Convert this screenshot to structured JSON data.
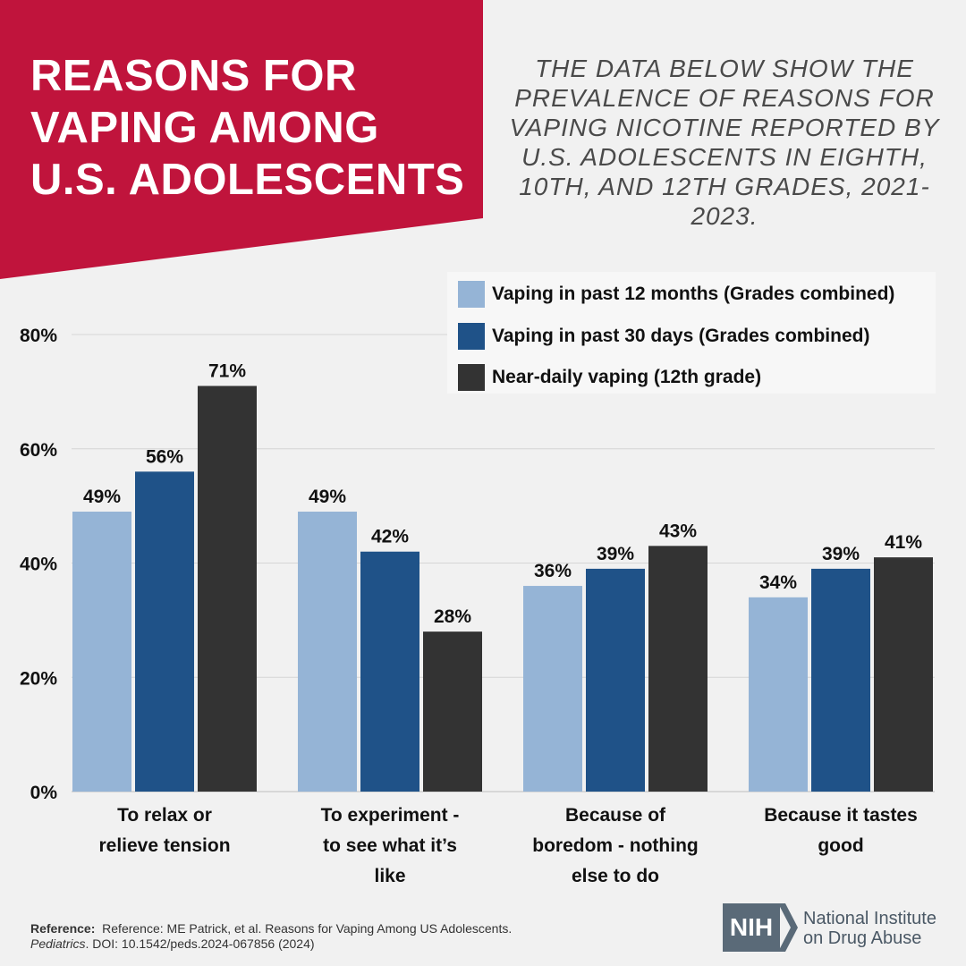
{
  "header": {
    "title": "REASONS FOR VAPING AMONG U.S. ADOLESCENTS",
    "subtitle": "THE DATA BELOW SHOW THE PREVALENCE OF REASONS FOR VAPING NICOTINE REPORTED BY U.S. ADOLESCENTS IN EIGHTH, 10TH, AND 12TH GRADES, 2021-2023.",
    "banner_color": "#c0143c"
  },
  "chart_data": {
    "type": "bar",
    "categories": [
      [
        "To relax or",
        "relieve tension"
      ],
      [
        "To experiment -",
        "to see what it’s",
        "like"
      ],
      [
        "Because of",
        "boredom - nothing",
        "else to do"
      ],
      [
        "Because it tastes",
        "good"
      ]
    ],
    "series": [
      {
        "name": "Vaping in past 12 months (Grades combined)",
        "color": "#95b4d6",
        "values": [
          49,
          49,
          36,
          34
        ],
        "labels": [
          "49%",
          "49%",
          "36%",
          "34%"
        ]
      },
      {
        "name": "Vaping in past 30 days (Grades combined)",
        "color": "#1f5288",
        "values": [
          56,
          42,
          39,
          39
        ],
        "labels": [
          "56%",
          "42%",
          "39%",
          "39%"
        ]
      },
      {
        "name": "Near-daily vaping (12th grade)",
        "color": "#333333",
        "values": [
          71,
          28,
          43,
          41
        ],
        "labels": [
          "71%",
          "28%",
          "43%",
          "41%"
        ]
      }
    ],
    "yticks": [
      "0%",
      "20%",
      "40%",
      "60%",
      "80%"
    ],
    "ytick_values": [
      0,
      20,
      40,
      60,
      80
    ],
    "ylim": [
      0,
      80
    ],
    "grid": true,
    "legend_position": "top-right"
  },
  "legend": {
    "items": [
      {
        "label": "Vaping in past 12 months (Grades combined)",
        "color": "#95b4d6"
      },
      {
        "label": "Vaping in past 30 days (Grades combined)",
        "color": "#1f5288"
      },
      {
        "label": "Near-daily vaping (12th grade)",
        "color": "#333333"
      }
    ]
  },
  "footer": {
    "reference_label": "Reference:",
    "reference_text": "Reference: ME Patrick, et al. Reasons for Vaping Among US Adolescents.",
    "journal": "Pediatrics",
    "doi": ". DOI: 10.1542/peds.2024-067856 (2024)",
    "logo_abbr": "NIH",
    "org_name_line1": "National Institute",
    "org_name_line2": "on Drug Abuse"
  }
}
